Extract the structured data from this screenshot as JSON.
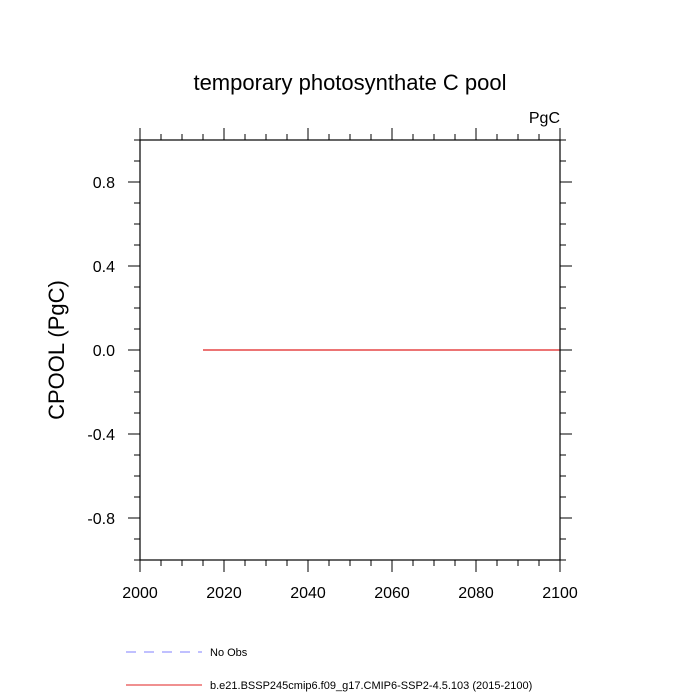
{
  "chart_data": {
    "type": "line",
    "title": "temporary photosynthate C pool",
    "units": "PgC",
    "xlabel": "",
    "ylabel": "CPOOL  (PgC)",
    "xlim": [
      2000,
      2100
    ],
    "ylim": [
      -1.0,
      1.0
    ],
    "x_ticks": [
      2000,
      2020,
      2040,
      2060,
      2080,
      2100
    ],
    "x_tick_labels": [
      "2000",
      "2020",
      "2040",
      "2060",
      "2080",
      "2100"
    ],
    "y_ticks": [
      -0.8,
      -0.4,
      0.0,
      0.4,
      0.8
    ],
    "y_tick_labels": [
      "-0.8",
      "-0.4",
      "0.0",
      "0.4",
      "0.8"
    ],
    "grid": false,
    "legend_position": "bottom",
    "series": [
      {
        "name": "No Obs",
        "color": "#8080ff",
        "dash": "dashed",
        "x": [],
        "values": []
      },
      {
        "name": "b.e21.BSSP245cmip6.f09_g17.CMIP6-SSP2-4.5.103 (2015-2100)",
        "color": "#e02020",
        "dash": "solid",
        "x": [
          2015,
          2100
        ],
        "values": [
          0.0,
          0.0
        ]
      }
    ]
  }
}
